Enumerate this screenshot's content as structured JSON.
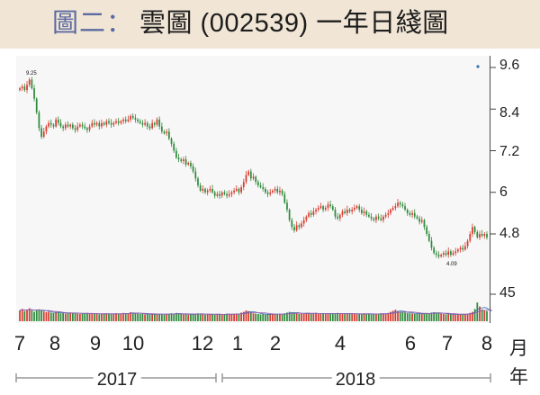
{
  "header": {
    "prefix": "圖二：",
    "title": "雲圖 (002539) 一年日綫圖"
  },
  "colors": {
    "title_band": "#f1e6d6",
    "title_prefix": "#5b6aa0",
    "up": "#d83a2e",
    "down": "#2f8a3c",
    "ma_line": "#3a6fb0"
  },
  "chart_data": {
    "type": "line",
    "title": "雲圖 (002539) 一年日綫圖",
    "price_axis": {
      "ticks": [
        "9.6",
        "8.4",
        "7.2",
        "6",
        "4.8"
      ],
      "range": [
        3.4,
        10.0
      ]
    },
    "volume_axis": {
      "ticks": [
        "45"
      ]
    },
    "x_ticks": [
      "7",
      "8",
      "9",
      "10",
      "12",
      "1",
      "2",
      "4",
      "6",
      "7",
      "8"
    ],
    "x_unit": "月",
    "years": [
      "2017",
      "2018"
    ],
    "year_unit": "年",
    "annotations": [
      {
        "text": "9.25",
        "x_index": 3,
        "y": 9.25
      },
      {
        "text": "4.09",
        "x_index": 214,
        "y": 4.09
      }
    ],
    "series": [
      {
        "values": [
          9.0,
          9.05,
          8.95,
          9.1,
          9.25,
          9.0,
          8.7,
          8.3,
          7.85,
          7.6,
          7.75,
          7.9,
          8.0,
          7.95,
          7.9,
          8.1,
          8.0,
          7.9,
          7.85,
          7.95,
          7.9,
          7.95,
          7.85,
          7.8,
          7.9,
          7.95,
          7.9,
          7.85,
          7.8,
          7.9,
          8.0,
          7.95,
          8.0,
          7.9,
          8.0,
          7.95,
          8.05,
          8.0,
          7.95,
          8.0,
          8.05,
          8.0,
          8.05,
          8.1,
          8.05,
          8.1,
          8.2,
          8.15,
          8.1,
          8.05,
          8.0,
          7.95,
          8.0,
          7.9,
          7.85,
          8.0,
          7.95,
          8.1,
          7.9,
          7.75,
          7.7,
          7.75,
          7.55,
          7.4,
          7.2,
          7.0,
          6.95,
          6.9,
          6.95,
          6.8,
          6.85,
          6.75,
          6.6,
          6.4,
          6.2,
          6.05,
          6.1,
          6.0,
          6.05,
          6.1,
          6.0,
          5.9,
          5.95,
          5.9,
          6.0,
          5.95,
          5.9,
          5.95,
          6.0,
          6.05,
          6.1,
          6.0,
          6.15,
          6.3,
          6.5,
          6.6,
          6.4,
          6.45,
          6.3,
          6.2,
          6.15,
          6.1,
          6.0,
          5.95,
          6.0,
          6.05,
          6.1,
          6.0,
          6.05,
          5.95,
          5.7,
          5.5,
          5.2,
          5.0,
          4.9,
          5.05,
          5.0,
          5.1,
          5.2,
          5.3,
          5.4,
          5.35,
          5.45,
          5.5,
          5.55,
          5.6,
          5.5,
          5.55,
          5.65,
          5.6,
          5.5,
          5.3,
          5.25,
          5.35,
          5.45,
          5.4,
          5.5,
          5.45,
          5.5,
          5.55,
          5.6,
          5.5,
          5.4,
          5.45,
          5.35,
          5.3,
          5.25,
          5.2,
          5.3,
          5.25,
          5.2,
          5.3,
          5.35,
          5.4,
          5.5,
          5.55,
          5.6,
          5.7,
          5.65,
          5.6,
          5.5,
          5.4,
          5.35,
          5.4,
          5.3,
          5.25,
          5.15,
          5.2,
          5.0,
          4.8,
          4.6,
          4.4,
          4.25,
          4.2,
          4.15,
          4.2,
          4.25,
          4.2,
          4.3,
          4.2,
          4.25,
          4.3,
          4.35,
          4.4,
          4.35,
          4.45,
          4.6,
          4.8,
          5.0,
          4.85,
          4.7,
          4.8,
          4.75,
          4.8,
          4.7
        ]
      }
    ],
    "volume": [
      3.0,
      3.4,
      2.8,
      3.2,
      3.6,
      3.0,
      2.6,
      3.1,
      3.3,
      2.9,
      2.7,
      2.5,
      2.6,
      2.4,
      2.3,
      2.5,
      2.4,
      2.2,
      2.3,
      2.1,
      2.2,
      2.4,
      2.2,
      2.3,
      2.1,
      2.0,
      2.2,
      2.1,
      2.3,
      2.0,
      2.1,
      2.2,
      2.0,
      1.9,
      2.1,
      2.0,
      2.2,
      2.1,
      1.9,
      2.0,
      2.2,
      2.1,
      2.0,
      2.3,
      2.1,
      2.2,
      2.5,
      2.4,
      2.2,
      2.1,
      2.0,
      2.1,
      1.9,
      2.0,
      1.8,
      2.0,
      1.9,
      2.1,
      2.0,
      1.9,
      1.8,
      2.0,
      2.1,
      2.2,
      2.0,
      2.3,
      2.1,
      2.0,
      1.9,
      2.0,
      1.8,
      1.9,
      2.0,
      2.1,
      2.2,
      2.0,
      1.9,
      1.8,
      2.0,
      1.9,
      2.0,
      1.8,
      1.9,
      2.0,
      1.8,
      1.9,
      2.1,
      2.0,
      1.9,
      2.0,
      2.1,
      2.0,
      2.4,
      2.6,
      3.0,
      2.8,
      2.5,
      2.2,
      2.1,
      2.0,
      1.9,
      2.0,
      1.8,
      1.9,
      2.0,
      2.1,
      2.0,
      1.9,
      2.0,
      1.9,
      2.2,
      2.4,
      2.6,
      2.5,
      2.3,
      2.2,
      2.0,
      2.1,
      2.0,
      2.2,
      2.3,
      2.1,
      2.2,
      2.3,
      2.0,
      2.1,
      2.2,
      2.0,
      2.1,
      2.2,
      2.0,
      2.1,
      2.3,
      2.2,
      2.0,
      2.1,
      2.2,
      2.0,
      2.1,
      2.0,
      1.9,
      2.0,
      2.1,
      2.2,
      2.0,
      2.1,
      1.9,
      2.0,
      2.1,
      2.0,
      2.2,
      2.1,
      2.0,
      2.3,
      2.6,
      2.9,
      3.2,
      2.8,
      2.6,
      2.5,
      2.4,
      2.3,
      2.2,
      2.1,
      2.0,
      2.1,
      2.2,
      2.0,
      2.1,
      2.3,
      2.2,
      2.4,
      2.5,
      2.3,
      2.2,
      2.1,
      2.0,
      1.9,
      2.0,
      1.9,
      2.0,
      1.8,
      1.9,
      2.0,
      1.9,
      2.0,
      2.1,
      2.3,
      2.6,
      3.4,
      5.2,
      4.1,
      3.3,
      3.0,
      2.8,
      2.6,
      2.5
    ]
  }
}
